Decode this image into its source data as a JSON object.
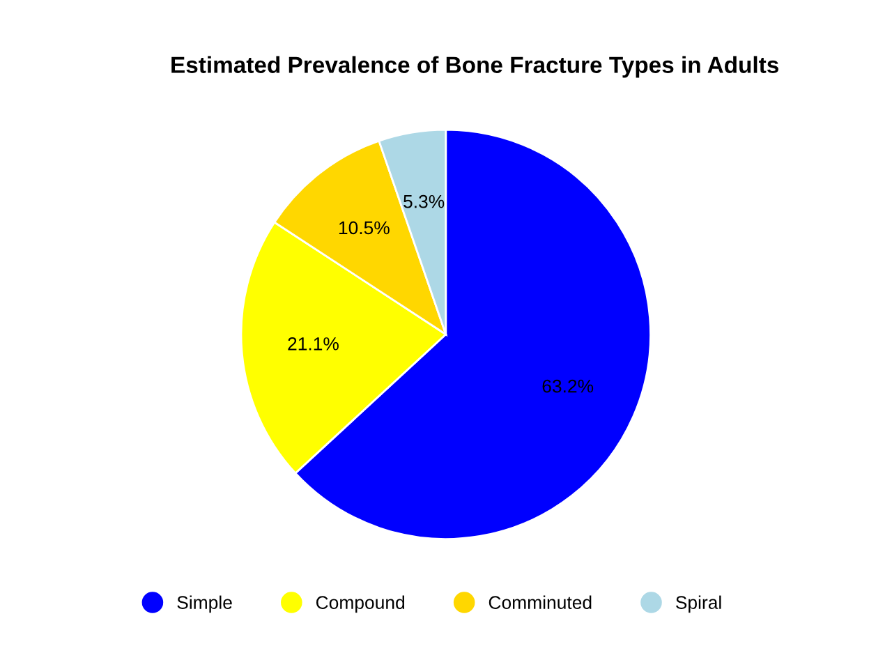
{
  "chart_data": {
    "type": "pie",
    "title": "Estimated Prevalence of Bone Fracture Types in Adults",
    "categories": [
      "Simple",
      "Compound",
      "Comminuted",
      "Spiral"
    ],
    "values": [
      63.2,
      21.1,
      10.5,
      5.3
    ],
    "colors": [
      "#0000ff",
      "#ffff00",
      "#ffd700",
      "#add8e6"
    ],
    "value_labels": [
      "63.2%",
      "21.1%",
      "10.5%",
      "5.3%"
    ],
    "legend": "bottom"
  }
}
